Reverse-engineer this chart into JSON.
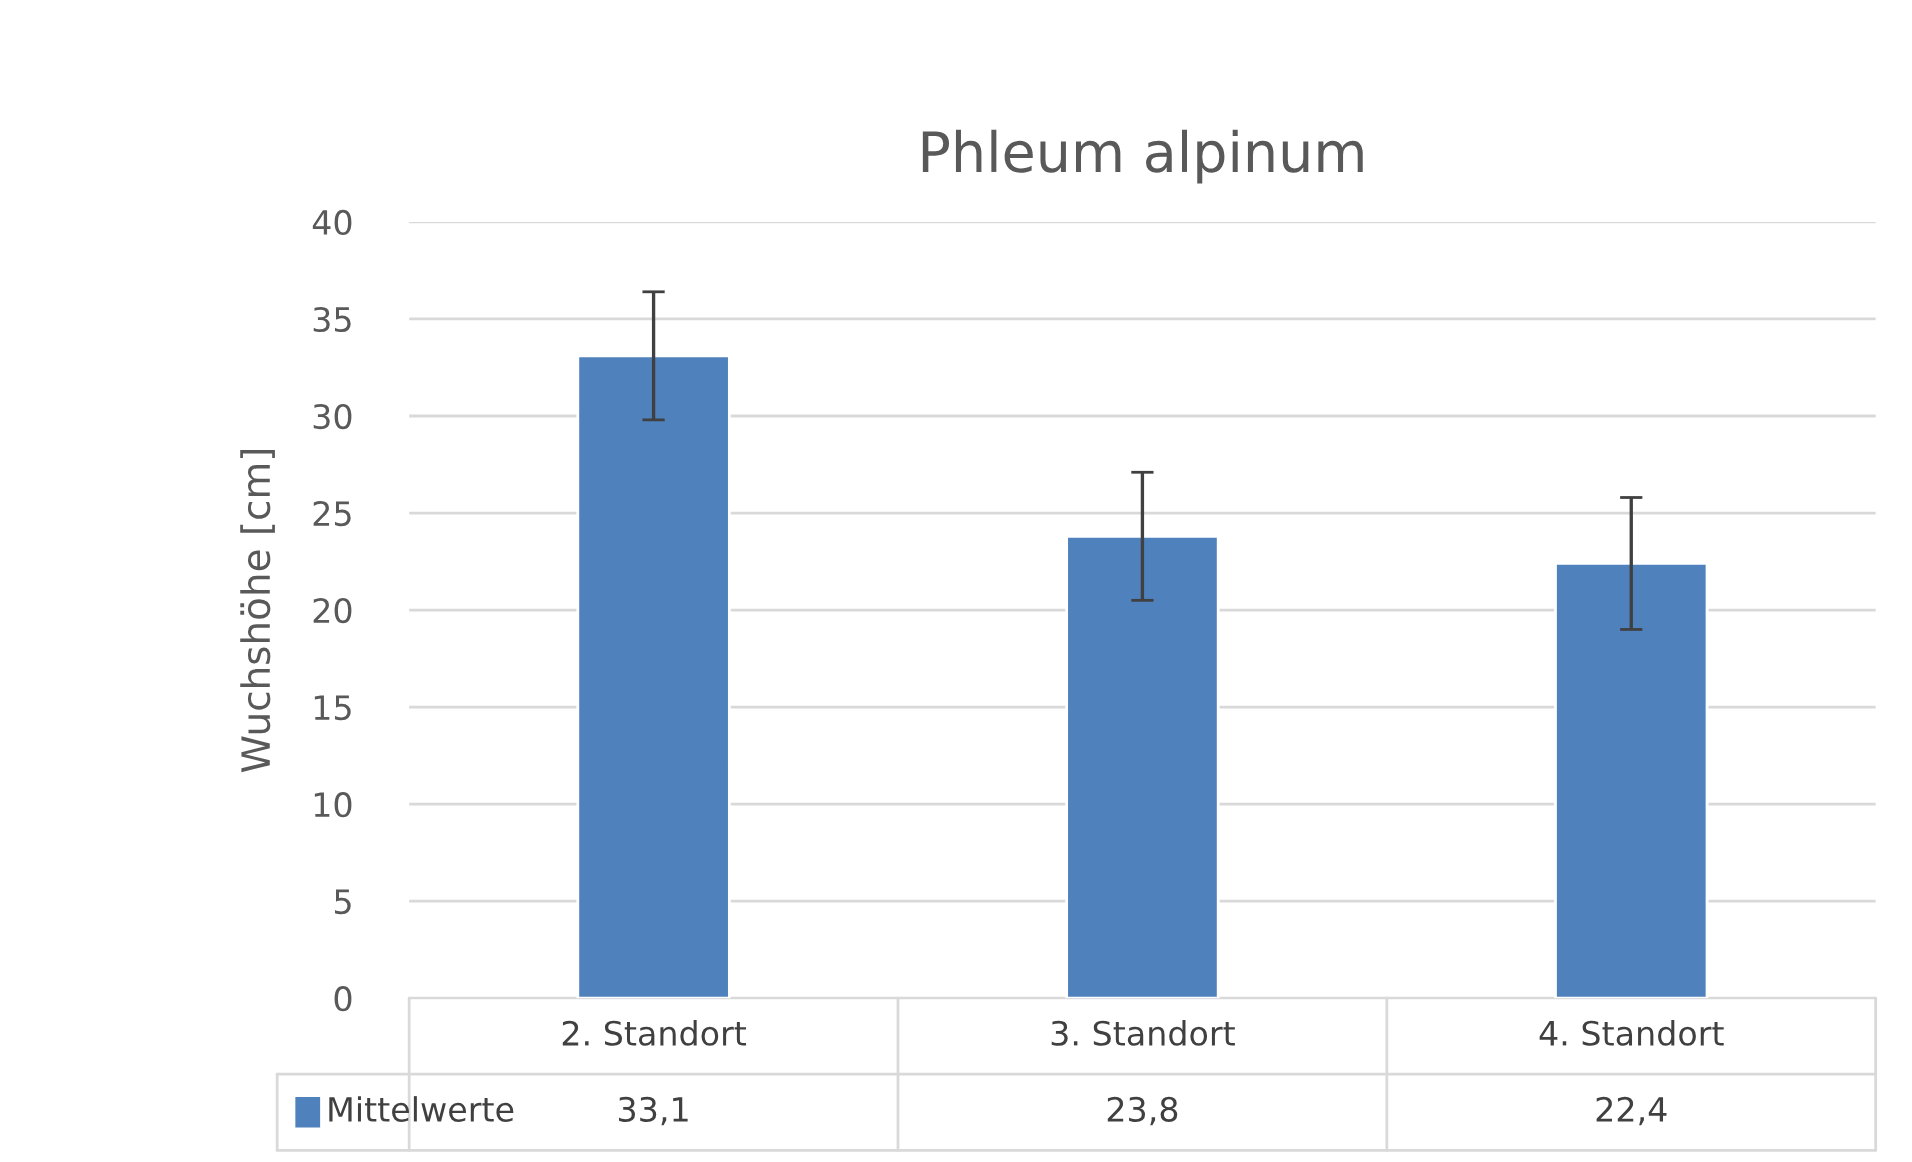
{
  "chart_data": {
    "type": "bar",
    "title": "Phleum alpinum",
    "ylabel": "Wuchshöhe [cm]",
    "categories": [
      "2. Standort",
      "3. Standort",
      "4. Standort"
    ],
    "series": [
      {
        "name": "Mittelwerte",
        "color": "#4f81bd",
        "values": [
          33.1,
          23.8,
          22.4
        ],
        "errors": [
          3.3,
          3.3,
          3.4
        ],
        "value_labels": [
          "33,1",
          "23,8",
          "22,4"
        ]
      }
    ],
    "ylim": [
      0,
      40
    ],
    "yticks": [
      0,
      5,
      10,
      15,
      20,
      25,
      30,
      35,
      40
    ],
    "grid": "y",
    "legend": "bottom"
  }
}
